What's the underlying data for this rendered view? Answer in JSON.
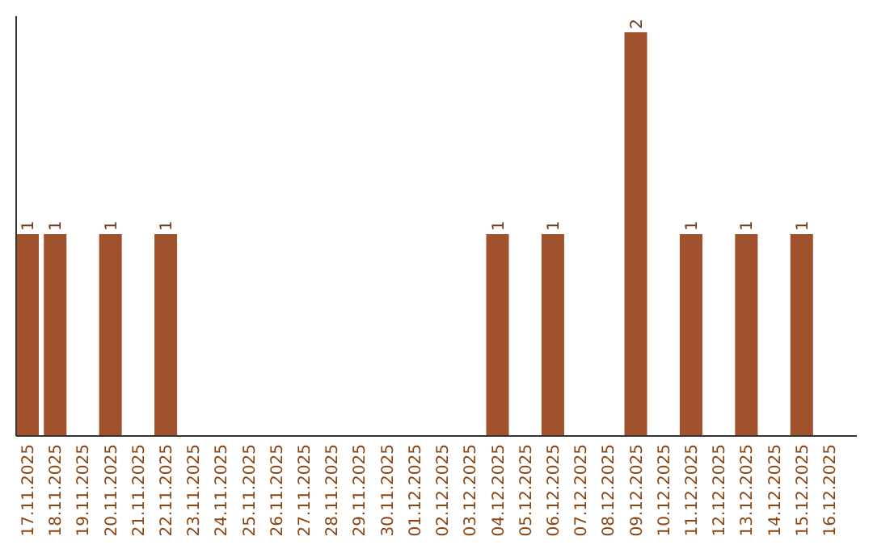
{
  "chart_data": {
    "type": "bar",
    "categories": [
      "17.11.2025",
      "18.11.2025",
      "19.11.2025",
      "20.11.2025",
      "21.11.2025",
      "22.11.2025",
      "23.11.2025",
      "24.11.2025",
      "25.11.2025",
      "26.11.2025",
      "27.11.2025",
      "28.11.2025",
      "29.11.2025",
      "30.11.2025",
      "01.12.2025",
      "02.12.2025",
      "03.12.2025",
      "04.12.2025",
      "05.12.2025",
      "06.12.2025",
      "07.12.2025",
      "08.12.2025",
      "09.12.2025",
      "10.12.2025",
      "11.12.2025",
      "12.12.2025",
      "13.12.2025",
      "14.12.2025",
      "15.12.2025",
      "16.12.2025"
    ],
    "values": [
      1,
      1,
      0,
      1,
      0,
      1,
      0,
      0,
      0,
      0,
      0,
      0,
      0,
      0,
      0,
      0,
      0,
      1,
      0,
      1,
      0,
      0,
      2,
      0,
      1,
      0,
      1,
      0,
      1,
      0
    ],
    "value_labels": [
      "1",
      "1",
      null,
      "1",
      null,
      "1",
      null,
      null,
      null,
      null,
      null,
      null,
      null,
      null,
      null,
      null,
      null,
      "1",
      null,
      "1",
      null,
      null,
      "2",
      null,
      "1",
      null,
      "1",
      null,
      "1",
      null
    ],
    "color": "#a0522d"
  }
}
